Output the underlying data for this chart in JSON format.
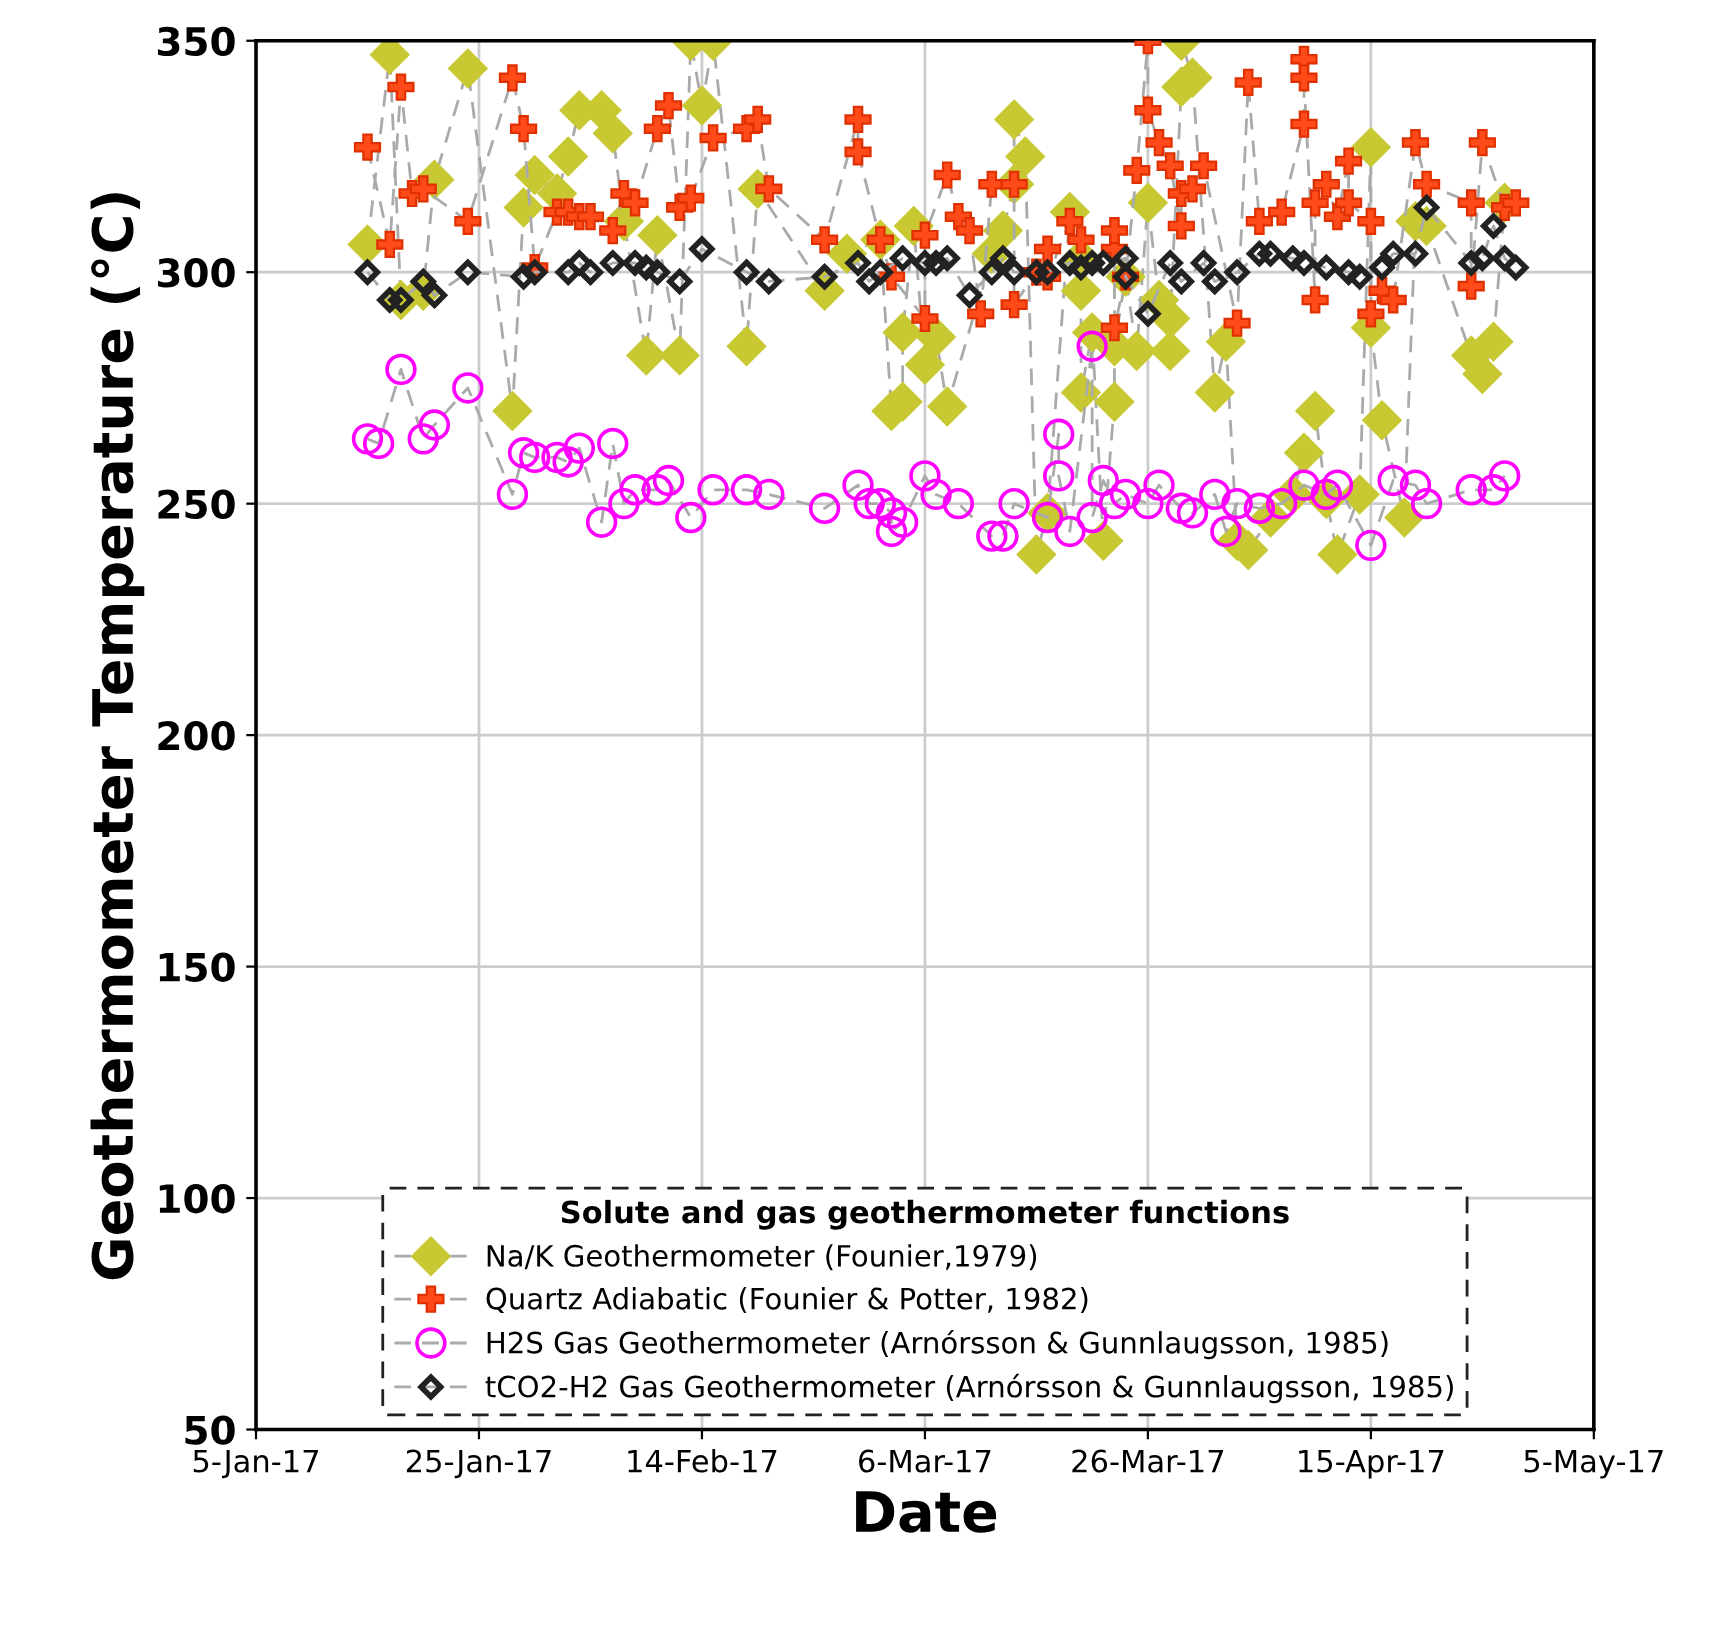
{
  "chart_data": {
    "type": "line",
    "xlabel": "Date",
    "ylabel": "Geothermometer Temperature (°C)",
    "legend_title": "Solute and gas geothermometer functions",
    "xlim": [
      "2017-01-05",
      "2017-05-05"
    ],
    "xticks": [
      {
        "value": "2017-01-05",
        "label": "5-Jan-17"
      },
      {
        "value": "2017-01-25",
        "label": "25-Jan-17"
      },
      {
        "value": "2017-02-14",
        "label": "14-Feb-17"
      },
      {
        "value": "2017-03-06",
        "label": "6-Mar-17"
      },
      {
        "value": "2017-03-26",
        "label": "26-Mar-17"
      },
      {
        "value": "2017-04-15",
        "label": "15-Apr-17"
      },
      {
        "value": "2017-05-05",
        "label": "5-May-17"
      }
    ],
    "ylim": [
      50,
      350
    ],
    "yticks": [
      50,
      100,
      150,
      200,
      250,
      300,
      350
    ],
    "grid": true,
    "legend": "bottom",
    "line_style": "dashed",
    "series": [
      {
        "name": "Na/K Geothermometer (Founier,1979)",
        "color": "#c8c832",
        "marker": "diamond",
        "x": [
          "2017-01-15",
          "2017-01-17",
          "2017-01-18",
          "2017-01-20",
          "2017-01-21",
          "2017-01-24",
          "2017-01-28",
          "2017-01-29",
          "2017-01-30",
          "2017-02-01",
          "2017-02-02",
          "2017-02-03",
          "2017-02-05",
          "2017-02-06",
          "2017-02-07",
          "2017-02-09",
          "2017-02-10",
          "2017-02-12",
          "2017-02-13",
          "2017-02-14",
          "2017-02-15",
          "2017-02-18",
          "2017-02-19",
          "2017-02-25",
          "2017-02-27",
          "2017-03-02",
          "2017-03-03",
          "2017-03-04",
          "2017-03-04",
          "2017-03-05",
          "2017-03-06",
          "2017-03-07",
          "2017-03-08",
          "2017-03-12",
          "2017-03-13",
          "2017-03-14",
          "2017-03-14",
          "2017-03-15",
          "2017-03-16",
          "2017-03-17",
          "2017-03-19",
          "2017-03-20",
          "2017-03-20",
          "2017-03-20",
          "2017-03-21",
          "2017-03-22",
          "2017-03-23",
          "2017-03-23",
          "2017-03-24",
          "2017-03-25",
          "2017-03-26",
          "2017-03-27",
          "2017-03-28",
          "2017-03-28",
          "2017-03-29",
          "2017-03-29",
          "2017-03-30",
          "2017-04-01",
          "2017-04-02",
          "2017-04-03",
          "2017-04-04",
          "2017-04-06",
          "2017-04-08",
          "2017-04-09",
          "2017-04-10",
          "2017-04-11",
          "2017-04-12",
          "2017-04-14",
          "2017-04-15",
          "2017-04-15",
          "2017-04-16",
          "2017-04-18",
          "2017-04-19",
          "2017-04-20",
          "2017-04-24",
          "2017-04-25",
          "2017-04-26",
          "2017-04-27"
        ],
        "values": [
          306,
          347,
          294,
          296,
          320,
          344,
          270,
          314,
          321,
          317,
          325,
          335,
          335,
          330,
          311,
          282,
          308,
          282,
          350,
          336,
          350,
          284,
          318,
          296,
          304,
          307,
          270,
          272,
          287,
          310,
          280,
          286,
          271,
          304,
          309,
          319,
          333,
          325,
          239,
          248,
          313,
          303,
          296,
          274,
          287,
          242,
          272,
          284,
          299,
          283,
          315,
          294,
          283,
          290,
          340,
          350,
          342,
          274,
          285,
          242,
          240,
          247,
          252,
          261,
          270,
          251,
          239,
          252,
          327,
          288,
          268,
          247,
          311,
          310,
          282,
          278,
          285,
          315
        ]
      },
      {
        "name": "Quartz Adiabatic (Founier & Potter, 1982)",
        "color": "#ff4a1a",
        "marker": "cross",
        "x": [
          "2017-01-15",
          "2017-01-17",
          "2017-01-18",
          "2017-01-19",
          "2017-01-20",
          "2017-01-24",
          "2017-01-28",
          "2017-01-29",
          "2017-01-30",
          "2017-02-01",
          "2017-02-02",
          "2017-02-03",
          "2017-02-04",
          "2017-02-06",
          "2017-02-07",
          "2017-02-08",
          "2017-02-10",
          "2017-02-11",
          "2017-02-12",
          "2017-02-13",
          "2017-02-15",
          "2017-02-18",
          "2017-02-19",
          "2017-02-20",
          "2017-02-25",
          "2017-02-28",
          "2017-02-28",
          "2017-03-02",
          "2017-03-03",
          "2017-03-06",
          "2017-03-06",
          "2017-03-08",
          "2017-03-09",
          "2017-03-10",
          "2017-03-11",
          "2017-03-12",
          "2017-03-14",
          "2017-03-14",
          "2017-03-16",
          "2017-03-17",
          "2017-03-17",
          "2017-03-19",
          "2017-03-20",
          "2017-03-23",
          "2017-03-23",
          "2017-03-23",
          "2017-03-24",
          "2017-03-25",
          "2017-03-26",
          "2017-03-26",
          "2017-03-27",
          "2017-03-28",
          "2017-03-29",
          "2017-03-29",
          "2017-03-30",
          "2017-03-31",
          "2017-04-03",
          "2017-04-04",
          "2017-04-05",
          "2017-04-07",
          "2017-04-09",
          "2017-04-09",
          "2017-04-09",
          "2017-04-10",
          "2017-04-10",
          "2017-04-11",
          "2017-04-12",
          "2017-04-13",
          "2017-04-13",
          "2017-04-15",
          "2017-04-15",
          "2017-04-16",
          "2017-04-17",
          "2017-04-19",
          "2017-04-20",
          "2017-04-24",
          "2017-04-24",
          "2017-04-25",
          "2017-04-27",
          "2017-04-28"
        ],
        "values": [
          327,
          306,
          340,
          317,
          318,
          311,
          342,
          331,
          301,
          313,
          313,
          312,
          312,
          309,
          317,
          315,
          331,
          336,
          314,
          316,
          329,
          331,
          333,
          318,
          307,
          333,
          326,
          307,
          299,
          290,
          308,
          321,
          312,
          309,
          291,
          319,
          319,
          293,
          300,
          305,
          299,
          311,
          307,
          305,
          309,
          288,
          299,
          322,
          350,
          335,
          328,
          323,
          310,
          317,
          318,
          323,
          289,
          341,
          311,
          313,
          332,
          346,
          342,
          294,
          315,
          319,
          312,
          324,
          315,
          311,
          291,
          296,
          294,
          328,
          319,
          315,
          297,
          328,
          314,
          315
        ]
      },
      {
        "name": "H2S Gas Geothermometer (Arnórsson & Gunnlaugsson, 1985)",
        "color": "#ff00ff",
        "marker": "circle",
        "x": [
          "2017-01-15",
          "2017-01-16",
          "2017-01-18",
          "2017-01-20",
          "2017-01-21",
          "2017-01-24",
          "2017-01-28",
          "2017-01-29",
          "2017-01-30",
          "2017-02-01",
          "2017-02-02",
          "2017-02-03",
          "2017-02-05",
          "2017-02-06",
          "2017-02-07",
          "2017-02-08",
          "2017-02-10",
          "2017-02-11",
          "2017-02-13",
          "2017-02-15",
          "2017-02-18",
          "2017-02-20",
          "2017-02-25",
          "2017-02-28",
          "2017-03-01",
          "2017-03-02",
          "2017-03-03",
          "2017-03-03",
          "2017-03-04",
          "2017-03-06",
          "2017-03-07",
          "2017-03-09",
          "2017-03-12",
          "2017-03-13",
          "2017-03-14",
          "2017-03-17",
          "2017-03-18",
          "2017-03-18",
          "2017-03-19",
          "2017-03-21",
          "2017-03-21",
          "2017-03-22",
          "2017-03-23",
          "2017-03-24",
          "2017-03-26",
          "2017-03-27",
          "2017-03-29",
          "2017-03-30",
          "2017-04-01",
          "2017-04-02",
          "2017-04-03",
          "2017-04-05",
          "2017-04-07",
          "2017-04-09",
          "2017-04-11",
          "2017-04-12",
          "2017-04-15",
          "2017-04-17",
          "2017-04-19",
          "2017-04-20",
          "2017-04-24",
          "2017-04-26",
          "2017-04-27"
        ],
        "values": [
          264,
          263,
          279,
          264,
          267,
          275,
          252,
          261,
          260,
          260,
          259,
          262,
          246,
          263,
          250,
          253,
          253,
          255,
          247,
          253,
          253,
          252,
          249,
          254,
          250,
          250,
          248,
          244,
          246,
          256,
          252,
          250,
          243,
          243,
          250,
          247,
          265,
          256,
          244,
          284,
          247,
          255,
          250,
          252,
          250,
          254,
          249,
          248,
          252,
          244,
          250,
          249,
          250,
          254,
          252,
          254,
          241,
          255,
          254,
          250,
          253,
          253,
          256
        ]
      },
      {
        "name": "tCO2-H2 Gas Geothermometer (Arnórsson & Gunnlaugsson, 1985)",
        "color": "#222222",
        "marker": "diamond",
        "x": [
          "2017-01-15",
          "2017-01-17",
          "2017-01-18",
          "2017-01-20",
          "2017-01-21",
          "2017-01-24",
          "2017-01-29",
          "2017-01-30",
          "2017-02-02",
          "2017-02-03",
          "2017-02-04",
          "2017-02-06",
          "2017-02-08",
          "2017-02-09",
          "2017-02-10",
          "2017-02-12",
          "2017-02-14",
          "2017-02-18",
          "2017-02-20",
          "2017-02-25",
          "2017-02-28",
          "2017-03-01",
          "2017-03-02",
          "2017-03-04",
          "2017-03-06",
          "2017-03-07",
          "2017-03-08",
          "2017-03-10",
          "2017-03-12",
          "2017-03-13",
          "2017-03-14",
          "2017-03-16",
          "2017-03-17",
          "2017-03-19",
          "2017-03-20",
          "2017-03-21",
          "2017-03-22",
          "2017-03-24",
          "2017-03-24",
          "2017-03-26",
          "2017-03-28",
          "2017-03-29",
          "2017-03-31",
          "2017-04-01",
          "2017-04-03",
          "2017-04-05",
          "2017-04-06",
          "2017-04-08",
          "2017-04-09",
          "2017-04-11",
          "2017-04-13",
          "2017-04-14",
          "2017-04-16",
          "2017-04-17",
          "2017-04-19",
          "2017-04-20",
          "2017-04-24",
          "2017-04-25",
          "2017-04-26",
          "2017-04-27",
          "2017-04-28"
        ],
        "values": [
          300,
          294,
          294,
          298,
          295,
          300,
          299,
          300,
          300,
          302,
          300,
          302,
          302,
          301,
          300,
          298,
          305,
          300,
          298,
          299,
          302,
          298,
          300,
          303,
          302,
          302,
          303,
          295,
          300,
          303,
          300,
          300,
          300,
          302,
          301,
          302,
          302,
          303,
          299,
          291,
          302,
          298,
          302,
          298,
          300,
          304,
          304,
          303,
          302,
          301,
          300,
          299,
          301,
          304,
          304,
          314,
          302,
          303,
          310,
          303,
          301
        ]
      }
    ]
  }
}
